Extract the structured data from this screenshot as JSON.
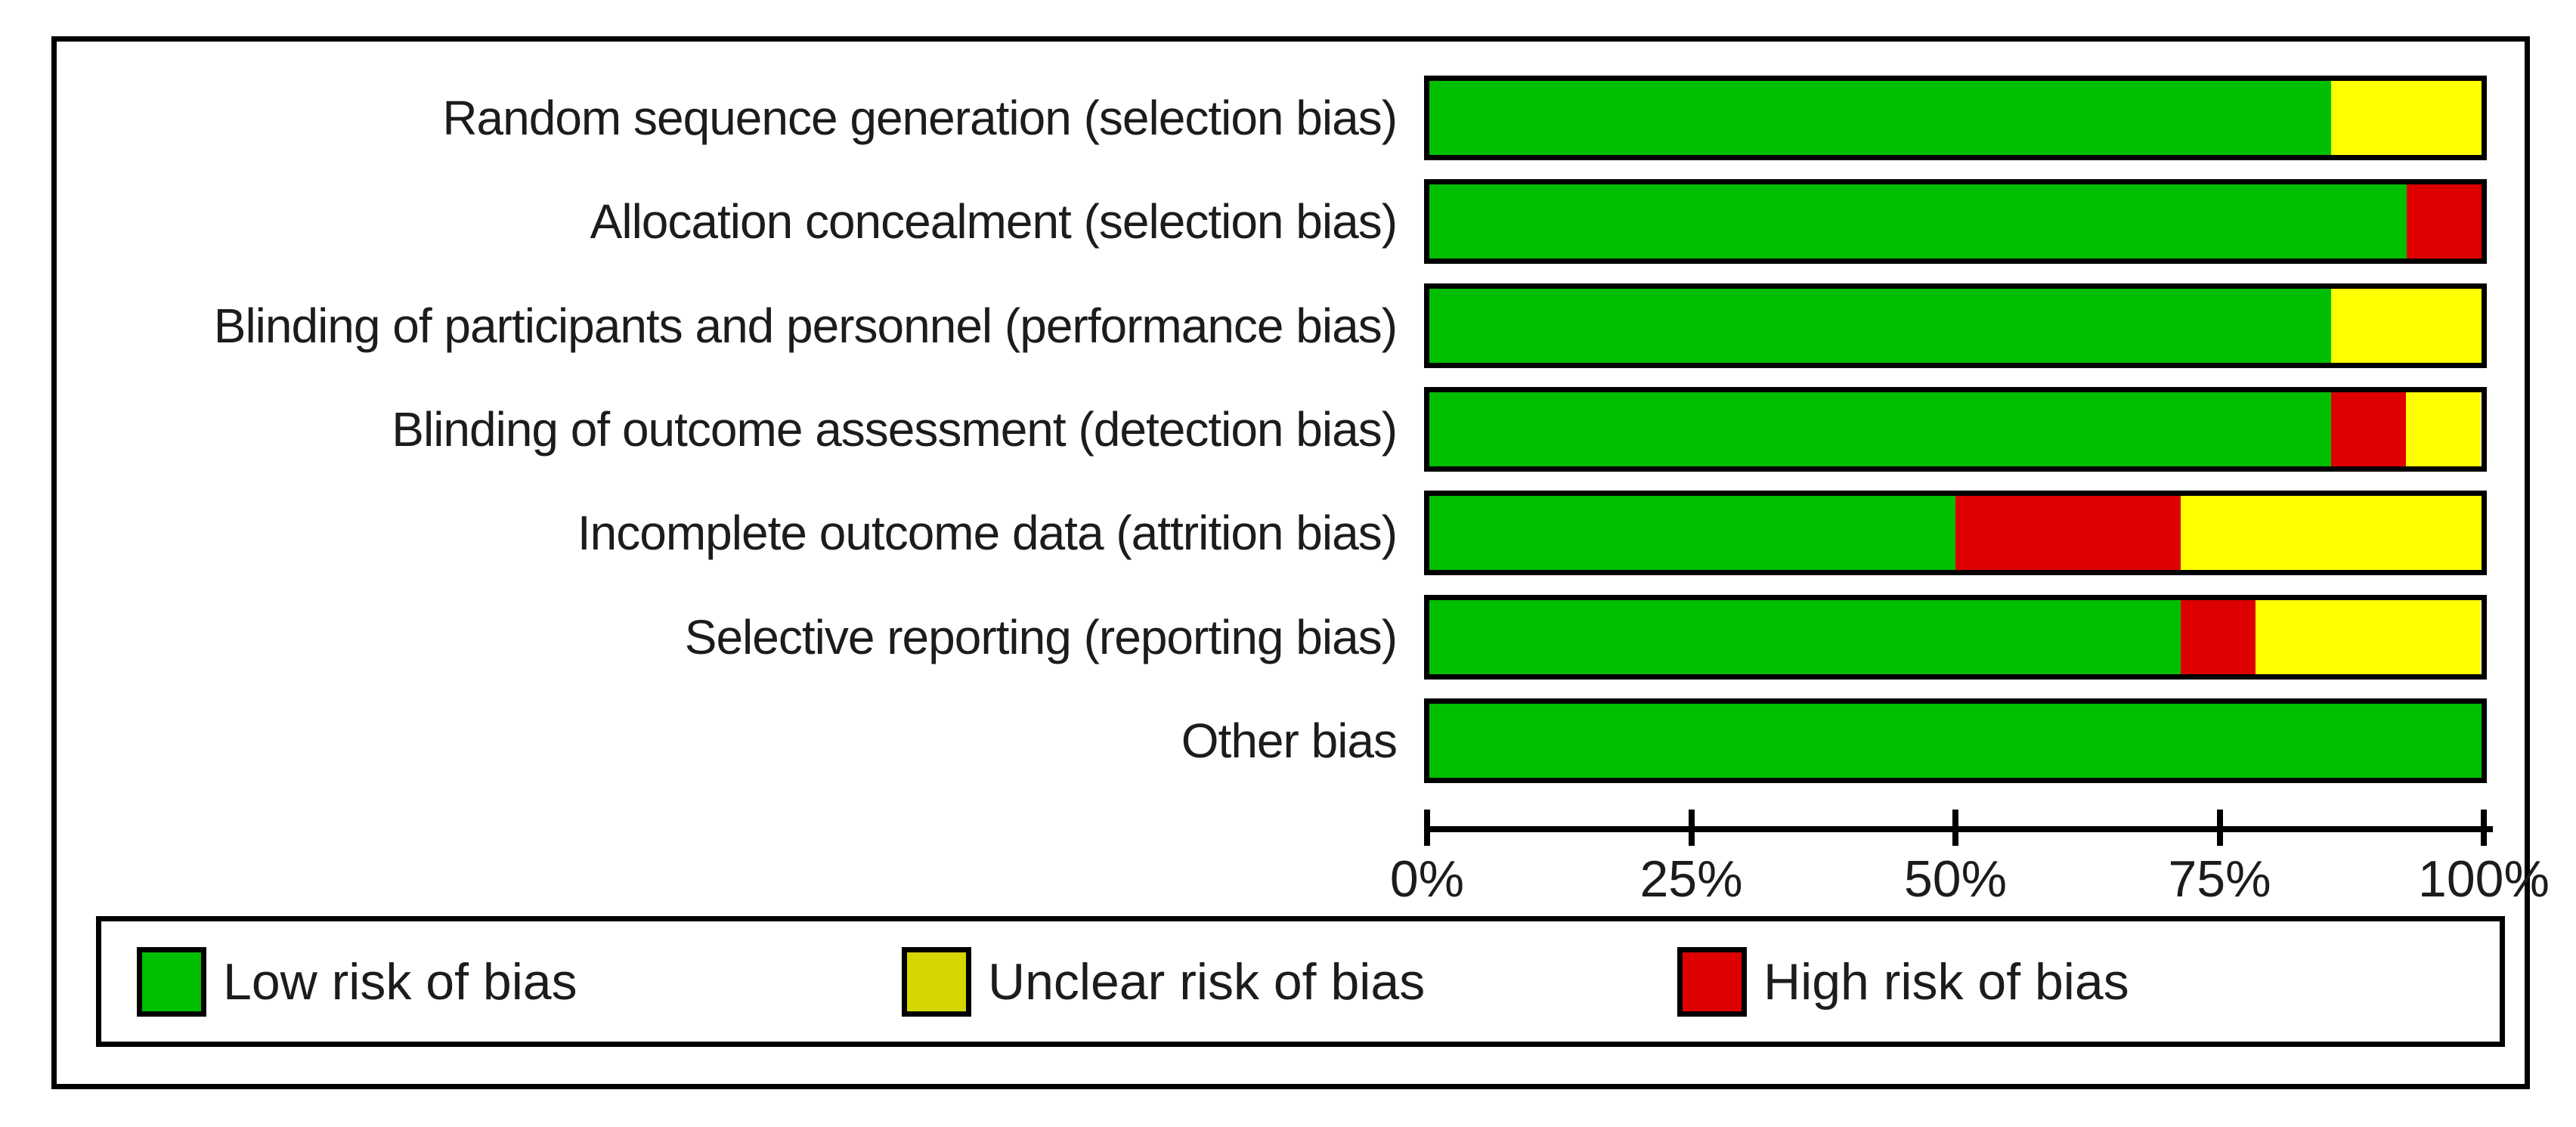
{
  "figure": {
    "background": "#ffffff",
    "border_color": "#000000"
  },
  "chart_data": {
    "type": "bar",
    "orientation": "horizontal",
    "stacked": true,
    "title": "",
    "xlabel": "",
    "ylabel": "",
    "categories": [
      "Random sequence generation (selection bias)",
      "Allocation concealment (selection bias)",
      "Blinding of participants and personnel (performance bias)",
      "Blinding of outcome assessment (detection bias)",
      "Incomplete outcome data (attrition bias)",
      "Selective reporting (reporting bias)",
      "Other bias"
    ],
    "series": [
      {
        "name": "Low risk of bias",
        "color": "#00be00",
        "values": [
          85.7,
          92.9,
          85.7,
          85.7,
          50.0,
          71.4,
          100.0
        ]
      },
      {
        "name": "High risk of bias",
        "color": "#de0000",
        "values": [
          0.0,
          7.1,
          0.0,
          7.1,
          21.4,
          7.1,
          0.0
        ]
      },
      {
        "name": "Unclear risk of bias",
        "color": "#ffff00",
        "values": [
          14.3,
          0.0,
          14.3,
          7.1,
          28.6,
          21.4,
          0.0
        ]
      }
    ],
    "xlim": [
      0,
      100
    ],
    "xticklabels": [
      "0%",
      "25%",
      "50%",
      "75%",
      "100%"
    ],
    "grid": false,
    "legend_position": "bottom"
  },
  "legend": {
    "items": [
      {
        "label": "Low risk of bias",
        "color": "#00be00"
      },
      {
        "label": "Unclear risk of bias",
        "color": "#d6d600"
      },
      {
        "label": "High risk of bias",
        "color": "#de0000"
      }
    ]
  }
}
